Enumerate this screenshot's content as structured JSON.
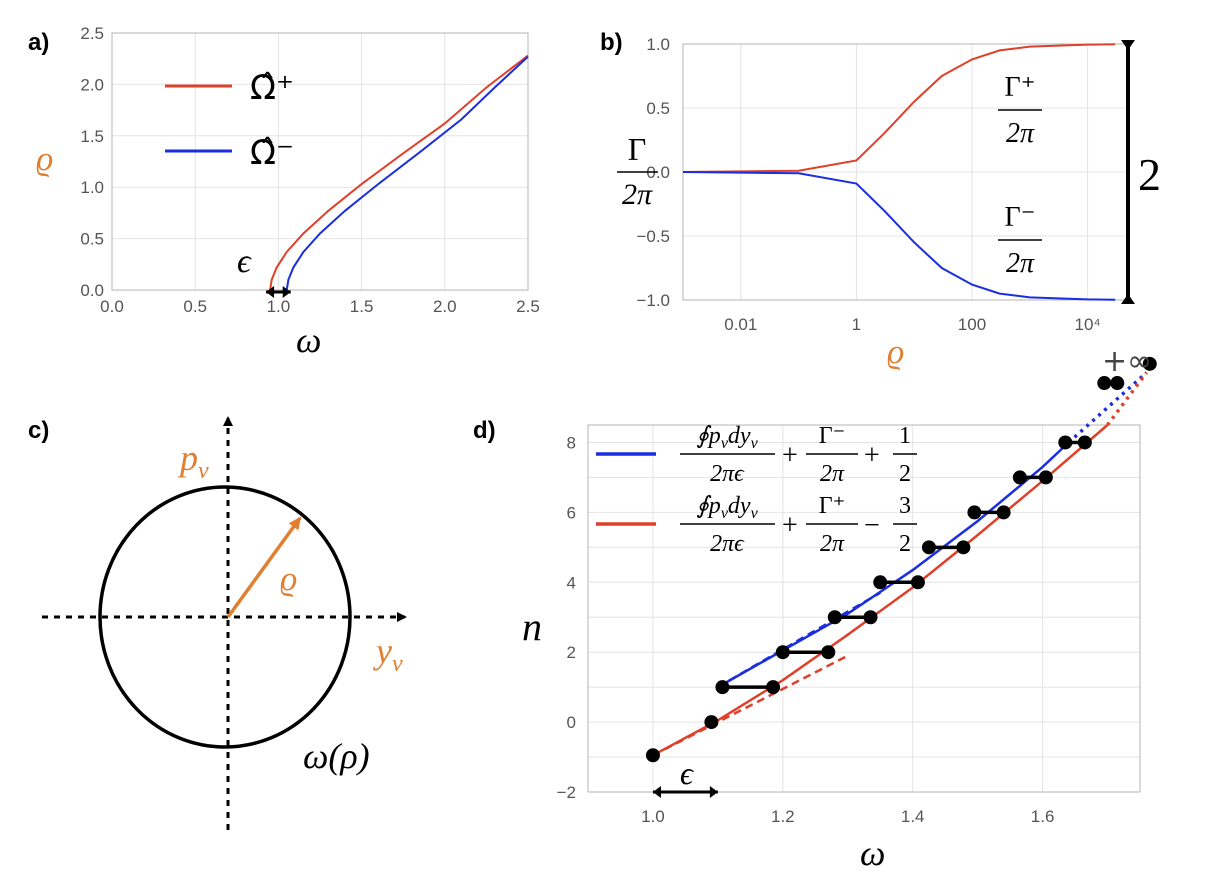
{
  "colors": {
    "red": "#e0402a",
    "blue": "#1a2ee0",
    "orange": "#e07f30",
    "black": "#000000",
    "grid": "#e4e4e4"
  },
  "panels": [
    {
      "id": "a",
      "label": "a)"
    },
    {
      "id": "b",
      "label": "b)"
    },
    {
      "id": "c",
      "label": "c)"
    },
    {
      "id": "d",
      "label": "d)"
    }
  ],
  "chart_data": [
    {
      "panel": "a",
      "type": "line",
      "xlabel": "ω",
      "ylabel": "ϱ",
      "xlim": [
        0,
        2.5
      ],
      "ylim": [
        0,
        2.5
      ],
      "xticks": [
        "0.0",
        "0.5",
        "1.0",
        "1.5",
        "2.0",
        "2.5"
      ],
      "yticks": [
        "0.0",
        "0.5",
        "1.0",
        "1.5",
        "2.0",
        "2.5"
      ],
      "grid": true,
      "legend": "top-left",
      "annotation": "ϵ",
      "epsilon_bracket": [
        0.95,
        1.05
      ],
      "series": [
        {
          "name": "Ω̂⁺",
          "color": "#e0402a",
          "x": [
            0.95,
            0.96,
            0.99,
            1.05,
            1.15,
            1.3,
            1.5,
            1.75,
            2.0,
            2.25,
            2.5
          ],
          "y": [
            0.0,
            0.1,
            0.22,
            0.37,
            0.55,
            0.77,
            1.03,
            1.33,
            1.62,
            1.97,
            2.28
          ]
        },
        {
          "name": "Ω̂⁻",
          "color": "#1a2ee0",
          "x": [
            1.05,
            1.06,
            1.09,
            1.15,
            1.25,
            1.4,
            1.6,
            1.85,
            2.1,
            2.3,
            2.5
          ],
          "y": [
            0.0,
            0.1,
            0.22,
            0.37,
            0.55,
            0.77,
            1.03,
            1.34,
            1.66,
            1.97,
            2.27
          ]
        }
      ]
    },
    {
      "panel": "b",
      "type": "line",
      "xlabel": "ϱ",
      "ylabel_num": "Γ",
      "ylabel_den": "2π",
      "xscale": "log",
      "xlim": [
        0.001,
        50000
      ],
      "ylim": [
        -1,
        1
      ],
      "xticks": [
        {
          "v": 0.01,
          "t": "0.01"
        },
        {
          "v": 1,
          "t": "1"
        },
        {
          "v": 100,
          "t": "100"
        },
        {
          "v": 10000,
          "t": "10⁴"
        }
      ],
      "yticks": [
        "1.0",
        "0.5",
        "0.0",
        "−0.5",
        "−1.0"
      ],
      "grid": true,
      "bracket_label": "2",
      "series": [
        {
          "name_num": "Γ⁺",
          "name_den": "2π",
          "color": "#e0402a",
          "x": [
            0.001,
            0.1,
            1,
            3,
            10,
            30,
            100,
            300,
            1000,
            10000,
            30000
          ],
          "y": [
            0.0,
            0.01,
            0.09,
            0.3,
            0.55,
            0.75,
            0.88,
            0.95,
            0.98,
            0.995,
            0.998
          ]
        },
        {
          "name_num": "Γ⁻",
          "name_den": "2π",
          "color": "#1a2ee0",
          "x": [
            0.001,
            0.1,
            1,
            3,
            10,
            30,
            100,
            300,
            1000,
            10000,
            30000
          ],
          "y": [
            0.0,
            -0.01,
            -0.09,
            -0.3,
            -0.55,
            -0.75,
            -0.88,
            -0.95,
            -0.98,
            -0.995,
            -0.998
          ]
        }
      ]
    },
    {
      "panel": "d",
      "type": "line",
      "xlabel": "ω",
      "ylabel": "n",
      "xlim": [
        0.9,
        1.75
      ],
      "ylim": [
        -2,
        8.5
      ],
      "xticks": [
        "1.0",
        "1.2",
        "1.4",
        "1.6"
      ],
      "yticks": [
        "−2",
        "0",
        "2",
        "4",
        "6",
        "8"
      ],
      "grid": true,
      "legend": "top-left",
      "annotation": "ϵ",
      "epsilon_bracket": [
        1.0,
        1.1
      ],
      "infinity_label": "+∞",
      "legend_entries": [
        {
          "num1": "∮p",
          "sub": "v",
          "mid": "dy",
          "sub2": "v",
          "den1": "2πϵ",
          "num2": "Γ⁻",
          "den2": "2π",
          "sign": "+",
          "num3": "1",
          "den3": "2",
          "color": "#1a2ee0"
        },
        {
          "num1": "∮p",
          "sub": "v",
          "mid": "dy",
          "sub2": "v",
          "den1": "2πϵ",
          "num2": "Γ⁺",
          "den2": "2π",
          "sign": "−",
          "num3": "3",
          "den3": "2",
          "color": "#e0402a"
        }
      ],
      "series": [
        {
          "name": "blue",
          "color": "#1a2ee0",
          "x": [
            1.1,
            1.2,
            1.3,
            1.4,
            1.5,
            1.6,
            1.64
          ],
          "y": [
            1.0,
            2.05,
            3.1,
            4.35,
            5.75,
            7.3,
            8.0
          ]
        },
        {
          "name": "red",
          "color": "#e0402a",
          "x": [
            1.0,
            1.1,
            1.2,
            1.3,
            1.4,
            1.5,
            1.6,
            1.7
          ],
          "y": [
            -0.95,
            0.05,
            1.2,
            2.5,
            3.85,
            5.35,
            6.9,
            8.5
          ]
        },
        {
          "name": "blue-dotted",
          "color": "#1a2ee0",
          "style": "dotted",
          "x": [
            1.64,
            1.76
          ],
          "y": [
            8.0,
            10.0
          ]
        },
        {
          "name": "red-dotted",
          "color": "#e0402a",
          "style": "dotted",
          "x": [
            1.7,
            1.76
          ],
          "y": [
            8.5,
            10.0
          ]
        },
        {
          "name": "blue-dashed",
          "color": "#1a2ee0",
          "style": "dashed",
          "x": [
            1.1,
            1.35
          ],
          "y": [
            1.0,
            3.7
          ]
        },
        {
          "name": "red-dashed",
          "color": "#e0402a",
          "style": "dashed",
          "x": [
            1.0,
            1.3
          ],
          "y": [
            -0.95,
            1.9
          ]
        }
      ],
      "steps": [
        {
          "n": 1,
          "x1": 1.107,
          "x2": 1.185
        },
        {
          "n": 2,
          "x1": 1.2,
          "x2": 1.27
        },
        {
          "n": 3,
          "x1": 1.28,
          "x2": 1.335
        },
        {
          "n": 4,
          "x1": 1.35,
          "x2": 1.408
        },
        {
          "n": 5,
          "x1": 1.425,
          "x2": 1.478
        },
        {
          "n": 6,
          "x1": 1.495,
          "x2": 1.54
        },
        {
          "n": 7,
          "x1": 1.565,
          "x2": 1.605
        },
        {
          "n": 8,
          "x1": 1.635,
          "x2": 1.665
        }
      ],
      "extra_points": [
        {
          "x": 1.0,
          "y": -0.95
        },
        {
          "x": 1.09,
          "y": 0.0
        }
      ],
      "infinity_points": [
        {
          "x": 1.695,
          "y": 9.7
        },
        {
          "x": 1.715,
          "y": 9.7
        },
        {
          "x": 1.765,
          "y": 10.25
        }
      ]
    },
    {
      "panel": "c",
      "type": "diagram",
      "labels": {
        "p": "p",
        "p_sub": "v",
        "y": "y",
        "y_sub": "v",
        "rho": "ϱ",
        "omega": "ω(ρ)"
      }
    }
  ]
}
